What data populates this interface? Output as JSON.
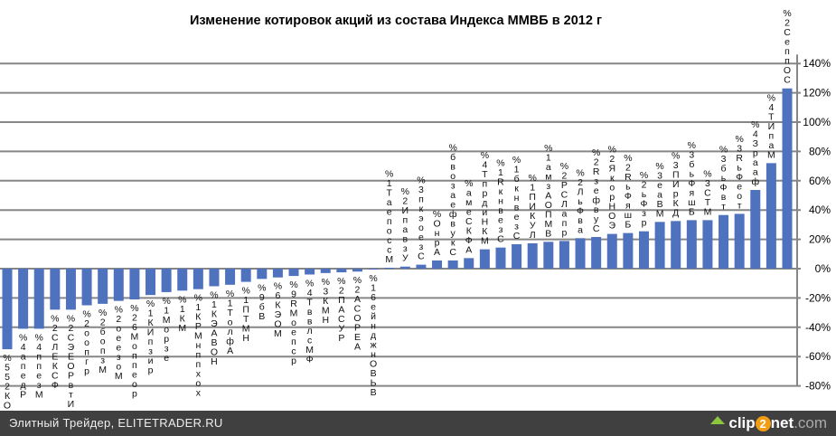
{
  "chart_data": {
    "type": "bar",
    "title": "Изменение котировок акций из состава Индекса ММВБ в 2012 г",
    "xlabel": "",
    "ylabel": "",
    "ylim": [
      -80,
      140
    ],
    "yticks": [
      "140%",
      "120%",
      "100%",
      "80%",
      "60%",
      "40%",
      "20%",
      "0%",
      "-20%",
      "-40%",
      "-60%",
      "-80%"
    ],
    "ytick_values": [
      140,
      120,
      100,
      80,
      60,
      40,
      20,
      0,
      -20,
      -40,
      -60,
      -80
    ],
    "grid": true,
    "bar_color": "#4f72be",
    "categories": [
      "%552КО",
      "%4апедР",
      "%4ппезМ",
      "%2СЛЕКСФ",
      "%2СЭЕОРвтИ",
      "%2оопгр",
      "%2бопзМ",
      "%2оеезоМ",
      "%26Моппеор",
      "%1КИпзир",
      "%1Морзе",
      "%1КМ",
      "%1КРМнппхох",
      "%1КЭАВОН",
      "%1ТолфА",
      "%1ПТМН",
      "%9бВ",
      "%6КЭОМ",
      "%9RМоепср",
      "%4ТввлсМФ",
      "%3КМН",
      "%2ПАСУР",
      "%2АСОРЕА",
      "%16ейнджнОВЬВ",
      "%1ТаепоссМ",
      "%2ИпавзУ",
      "%3пкэоезС",
      "%ОнрА",
      "%бвозаефвукС",
      "%амеСКФА",
      "%4ТпрдиНКМ",
      "%1RкнвезС",
      "%1бкнвезС",
      "%1ПИКУЛ",
      "%1амзАОПМВ",
      "%2РСЛапр",
      "%2ЛьФва",
      "%2RзефвуС",
      "%2ЯкорНОЭ",
      "%2RьФяшБ",
      "%2ьФзр",
      "%3еаВМ",
      "%3ПИрКД",
      "%3бьФяшБ",
      "%3СТМ",
      "%3бьФвт",
      "%3RьФеот",
      "%4Зрааф",
      "%4ТИпаМ",
      "%2СеппОС"
    ],
    "values": [
      -55,
      -41,
      -41,
      -28,
      -28,
      -25,
      -24,
      -22,
      -21,
      -18,
      -16,
      -15,
      -14,
      -12,
      -11,
      -9,
      -7,
      -6,
      -5,
      -4,
      -3,
      -2.5,
      -2,
      -0.5,
      0.6,
      1.4,
      2.7,
      5.6,
      5.6,
      7.2,
      13.2,
      14.4,
      16.7,
      17.3,
      18.3,
      18.9,
      20.8,
      21.6,
      23.7,
      24.3,
      25.5,
      31.9,
      32.5,
      33.1,
      33.1,
      36.6,
      37.4,
      53.7,
      72,
      123
    ]
  },
  "footer": {
    "source": "Элитный Трейдер, ELITETRADER.RU",
    "logo_text": "clip2net.com"
  }
}
